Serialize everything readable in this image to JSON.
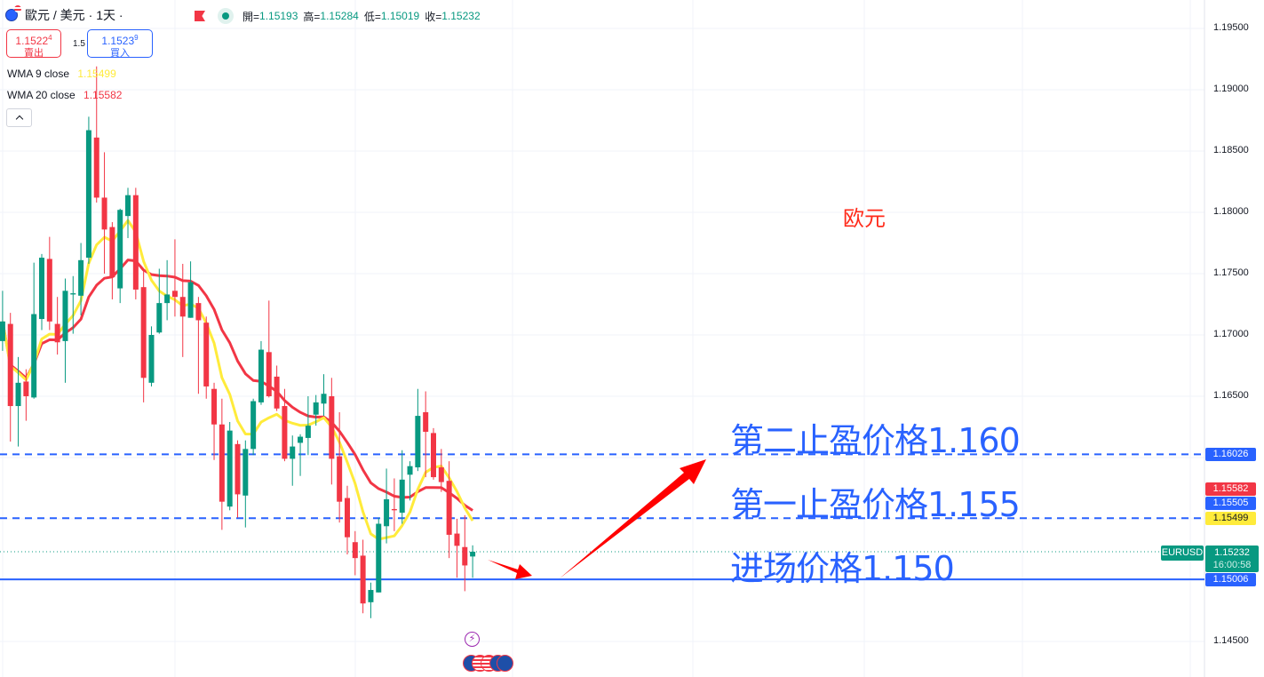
{
  "header": {
    "symbol": "歐元 / 美元",
    "interval": "· 1天 ·",
    "ohlc": [
      {
        "label": "開=",
        "value": "1.15193"
      },
      {
        "label": "高=",
        "value": "1.15284"
      },
      {
        "label": "低=",
        "value": "1.15019"
      },
      {
        "label": "收=",
        "value": "1.15232"
      }
    ]
  },
  "trade": {
    "sell_price": "1.1522",
    "sell_sup": "4",
    "sell_label": "賣出",
    "spread": "1.5",
    "buy_price": "1.1523",
    "buy_sup": "9",
    "buy_label": "買入"
  },
  "indicators": [
    {
      "name": "WMA 9 close",
      "value": "1.15499",
      "color": "#ffeb3b"
    },
    {
      "name": "WMA 20 close",
      "value": "1.15582",
      "color": "#f23645"
    }
  ],
  "collapse_icon": "chevron-up-icon",
  "price_axis": {
    "ticks": [
      "1.19500",
      "1.19000",
      "1.18500",
      "1.18000",
      "1.17500",
      "1.17000",
      "1.16500",
      "1.14500"
    ],
    "tags": {
      "tp2": "1.16026",
      "wma20": "1.15582",
      "tp1": "1.15505",
      "wma9": "1.15499",
      "symbol": "EURUSD",
      "last": "1.15232",
      "countdown": "16:00:58",
      "entry": "1.15006"
    }
  },
  "annotations": {
    "title": "欧元",
    "tp2": "第二止盈价格1.160",
    "tp1": "第一止盈价格1.155",
    "entry": "进场价格1.150"
  },
  "colors": {
    "up": "#089981",
    "down": "#f23645",
    "line": "#2962ff",
    "arrow": "#ff0000"
  },
  "event_icons": [
    "lightning-icon",
    "eu-flag-icon",
    "us-flag-icon"
  ],
  "chart_data": {
    "type": "candlestick",
    "ylim": [
      1.144,
      1.197
    ],
    "grid": true,
    "horizontal_lines": [
      {
        "price": 1.16026,
        "style": "dashed"
      },
      {
        "price": 1.15505,
        "style": "dashed"
      },
      {
        "price": 1.15006,
        "style": "solid"
      },
      {
        "price": 1.15232,
        "style": "dotted"
      }
    ],
    "candles": [
      [
        1.1695,
        1.1736,
        1.1687,
        1.1711
      ],
      [
        1.1709,
        1.1718,
        1.1613,
        1.1642
      ],
      [
        1.1642,
        1.1682,
        1.1609,
        1.1661
      ],
      [
        1.1662,
        1.1672,
        1.163,
        1.165
      ],
      [
        1.1649,
        1.1759,
        1.1648,
        1.1717
      ],
      [
        1.1713,
        1.1766,
        1.1704,
        1.1763
      ],
      [
        1.1762,
        1.178,
        1.1704,
        1.1711
      ],
      [
        1.1709,
        1.1731,
        1.1684,
        1.1694
      ],
      [
        1.1695,
        1.1746,
        1.1661,
        1.1736
      ],
      [
        1.1733,
        1.1748,
        1.1701,
        1.1734
      ],
      [
        1.1732,
        1.1775,
        1.1716,
        1.1761
      ],
      [
        1.1763,
        1.1878,
        1.1758,
        1.1867
      ],
      [
        1.1861,
        1.1919,
        1.1808,
        1.1812
      ],
      [
        1.1812,
        1.1849,
        1.175,
        1.1786
      ],
      [
        1.1788,
        1.1792,
        1.1729,
        1.1747
      ],
      [
        1.1738,
        1.1803,
        1.1726,
        1.1802
      ],
      [
        1.1797,
        1.182,
        1.1779,
        1.1814
      ],
      [
        1.1814,
        1.182,
        1.1729,
        1.1737
      ],
      [
        1.1739,
        1.1752,
        1.1645,
        1.1665
      ],
      [
        1.1661,
        1.1707,
        1.1658,
        1.17
      ],
      [
        1.1702,
        1.1754,
        1.1701,
        1.1726
      ],
      [
        1.1726,
        1.1761,
        1.1712,
        1.1733
      ],
      [
        1.1736,
        1.1778,
        1.1715,
        1.1731
      ],
      [
        1.1731,
        1.1758,
        1.1682,
        1.1715
      ],
      [
        1.1714,
        1.176,
        1.1714,
        1.1743
      ],
      [
        1.1726,
        1.1731,
        1.1652,
        1.1712
      ],
      [
        1.171,
        1.1715,
        1.1648,
        1.1658
      ],
      [
        1.1656,
        1.1661,
        1.1598,
        1.1627
      ],
      [
        1.1627,
        1.1648,
        1.1541,
        1.1564
      ],
      [
        1.156,
        1.1629,
        1.1557,
        1.1622
      ],
      [
        1.1611,
        1.1614,
        1.1551,
        1.157
      ],
      [
        1.1569,
        1.1614,
        1.1543,
        1.1607
      ],
      [
        1.1607,
        1.1648,
        1.1602,
        1.1646
      ],
      [
        1.1645,
        1.1695,
        1.1643,
        1.1688
      ],
      [
        1.1686,
        1.1728,
        1.1649,
        1.165
      ],
      [
        1.1666,
        1.1675,
        1.1638,
        1.164
      ],
      [
        1.1642,
        1.1656,
        1.1597,
        1.1599
      ],
      [
        1.1599,
        1.1618,
        1.1577,
        1.1609
      ],
      [
        1.1612,
        1.1619,
        1.1585,
        1.1617
      ],
      [
        1.1616,
        1.165,
        1.1602,
        1.1626
      ],
      [
        1.1635,
        1.1651,
        1.1626,
        1.1645
      ],
      [
        1.1644,
        1.1668,
        1.1634,
        1.1652
      ],
      [
        1.165,
        1.1665,
        1.1578,
        1.1599
      ],
      [
        1.1601,
        1.1637,
        1.1547,
        1.1564
      ],
      [
        1.1567,
        1.1577,
        1.1521,
        1.1535
      ],
      [
        1.1531,
        1.154,
        1.1504,
        1.1518
      ],
      [
        1.152,
        1.1533,
        1.1473,
        1.1481
      ],
      [
        1.1482,
        1.1498,
        1.1469,
        1.1492
      ],
      [
        1.149,
        1.1551,
        1.149,
        1.1546
      ],
      [
        1.1544,
        1.1591,
        1.153,
        1.1566
      ],
      [
        1.1558,
        1.1583,
        1.154,
        1.1557
      ],
      [
        1.1555,
        1.1606,
        1.1546,
        1.1582
      ],
      [
        1.1586,
        1.1597,
        1.1565,
        1.1593
      ],
      [
        1.1592,
        1.1656,
        1.1589,
        1.1634
      ],
      [
        1.1637,
        1.1654,
        1.1584,
        1.1621
      ],
      [
        1.162,
        1.1624,
        1.1582,
        1.1584
      ],
      [
        1.1592,
        1.1607,
        1.1572,
        1.158
      ],
      [
        1.1581,
        1.1597,
        1.1518,
        1.1537
      ],
      [
        1.1538,
        1.155,
        1.1502,
        1.1528
      ],
      [
        1.1527,
        1.1553,
        1.1491,
        1.1512
      ],
      [
        1.15193,
        1.15284,
        1.15019,
        1.15232
      ]
    ],
    "candle_format": [
      "open",
      "high",
      "low",
      "close"
    ],
    "series": [
      {
        "name": "WMA 9 close",
        "period": 9
      },
      {
        "name": "WMA 20 close",
        "period": 20
      }
    ]
  }
}
